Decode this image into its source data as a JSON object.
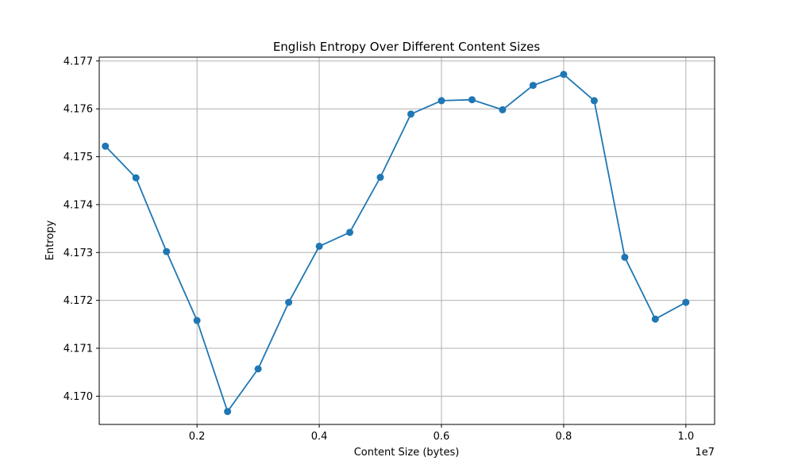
{
  "chart_data": {
    "type": "line",
    "title": "English Entropy Over Different Content Sizes",
    "xlabel": "Content Size (bytes)",
    "ylabel": "Entropy",
    "x_offset_label": "1e7",
    "xlim": [
      0.04,
      1.047
    ],
    "ylim": [
      4.16941,
      4.17708
    ],
    "x_ticks": [
      0.2,
      0.4,
      0.6,
      0.8,
      1.0
    ],
    "x_tick_labels": [
      "0.2",
      "0.4",
      "0.6",
      "0.8",
      "1.0"
    ],
    "y_ticks": [
      4.17,
      4.171,
      4.172,
      4.173,
      4.174,
      4.175,
      4.176,
      4.177
    ],
    "y_tick_labels": [
      "4.170",
      "4.171",
      "4.172",
      "4.173",
      "4.174",
      "4.175",
      "4.176",
      "4.177"
    ],
    "grid": true,
    "series": [
      {
        "color": "#1f77b4",
        "marker": "circle",
        "x": [
          0.05,
          0.1,
          0.15,
          0.2,
          0.25,
          0.3,
          0.35,
          0.4,
          0.45,
          0.5,
          0.55,
          0.6,
          0.65,
          0.7,
          0.75,
          0.8,
          0.85,
          0.9,
          0.95,
          1.0
        ],
        "y": [
          4.17522,
          4.17456,
          4.17302,
          4.17158,
          4.16968,
          4.17057,
          4.17196,
          4.17313,
          4.17342,
          4.17457,
          4.17589,
          4.17617,
          4.17619,
          4.17598,
          4.17649,
          4.17672,
          4.17617,
          4.1729,
          4.17161,
          4.17196
        ]
      }
    ]
  }
}
